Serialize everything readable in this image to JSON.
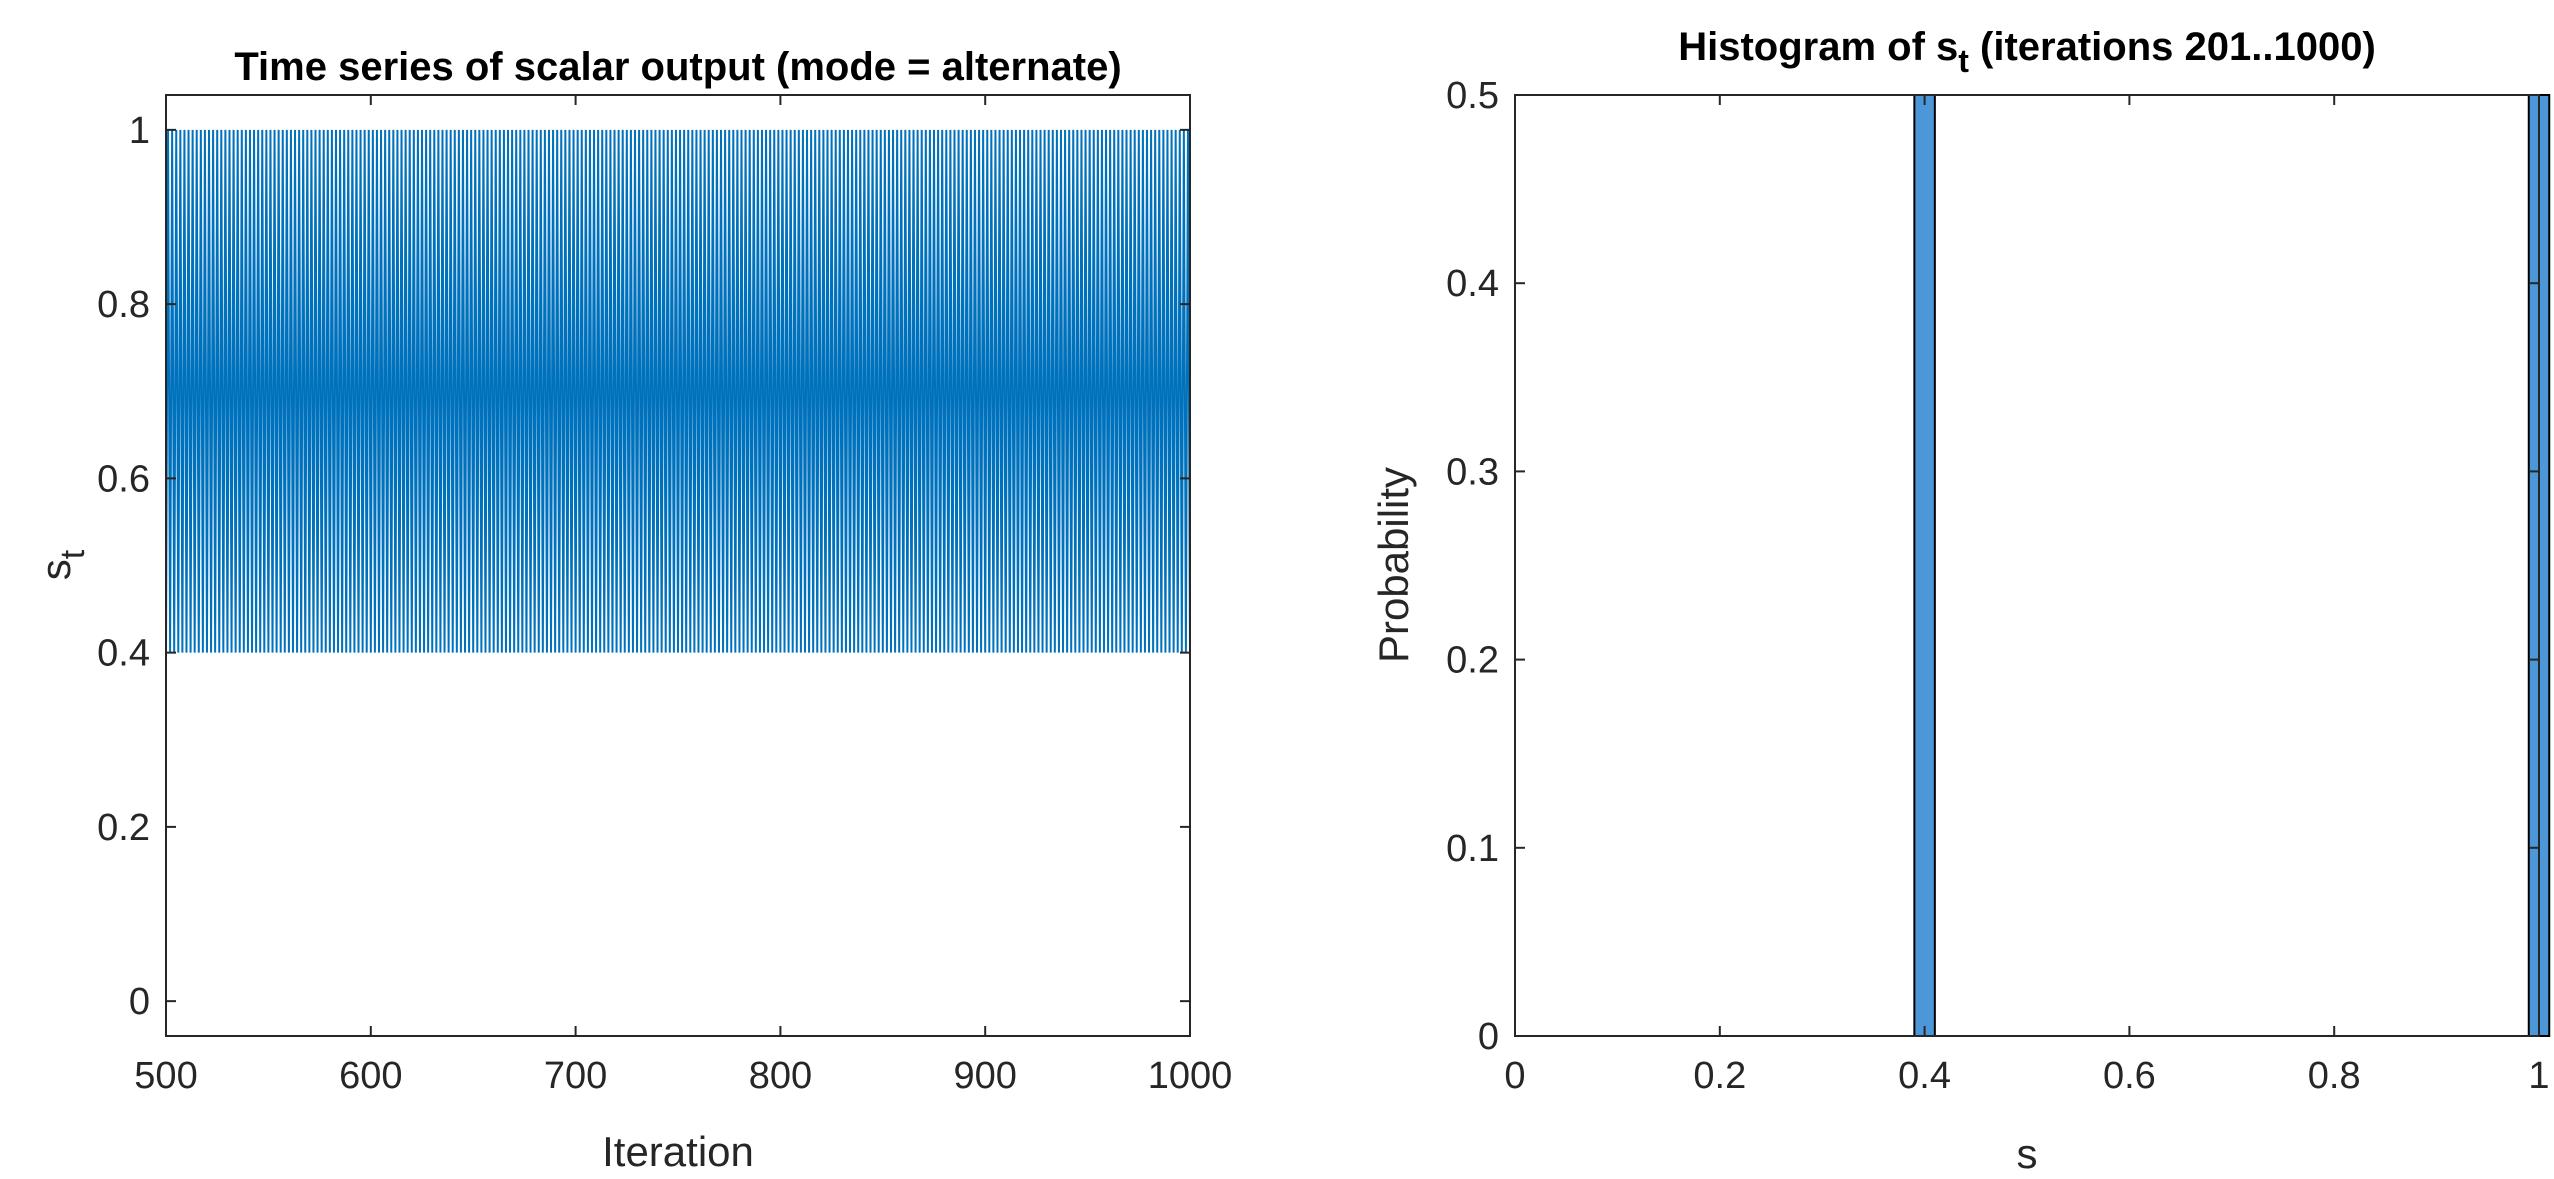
{
  "chart_data": [
    {
      "type": "line",
      "title": "Time series of scalar output (mode = alternate)",
      "xlabel": "Iteration",
      "ylabel": {
        "base": "s",
        "subscript": "t"
      },
      "xlim": [
        500,
        1000
      ],
      "ylim": [
        -0.04,
        1.04
      ],
      "xticks": [
        500,
        600,
        700,
        800,
        900,
        1000
      ],
      "yticks": [
        0,
        0.2,
        0.4,
        0.6,
        0.8,
        1
      ],
      "grid": false,
      "series": [
        {
          "pattern": "alternating",
          "x_start": 500,
          "x_end": 1000,
          "values_cycle": [
            0.4,
            1.0
          ]
        }
      ],
      "color": "#0072BD"
    },
    {
      "type": "bar",
      "title": {
        "prefix": "Histogram of s",
        "subscript": "t",
        "suffix": " (iterations 201..1000)"
      },
      "xlabel": "s",
      "ylabel": "Probability",
      "xlim": [
        0,
        1
      ],
      "ylim": [
        0,
        0.5
      ],
      "xticks": [
        0,
        0.2,
        0.4,
        0.6,
        0.8,
        1
      ],
      "yticks": [
        0,
        0.1,
        0.2,
        0.3,
        0.4,
        0.5
      ],
      "grid": false,
      "bins": [
        {
          "from": 0.39,
          "to": 0.41,
          "value": 0.5
        },
        {
          "from": 0.99,
          "to": 1.01,
          "value": 0.5
        }
      ],
      "color": "#4DBEEE",
      "face_color": "#4C97D8",
      "edge_color": "#000000"
    }
  ]
}
